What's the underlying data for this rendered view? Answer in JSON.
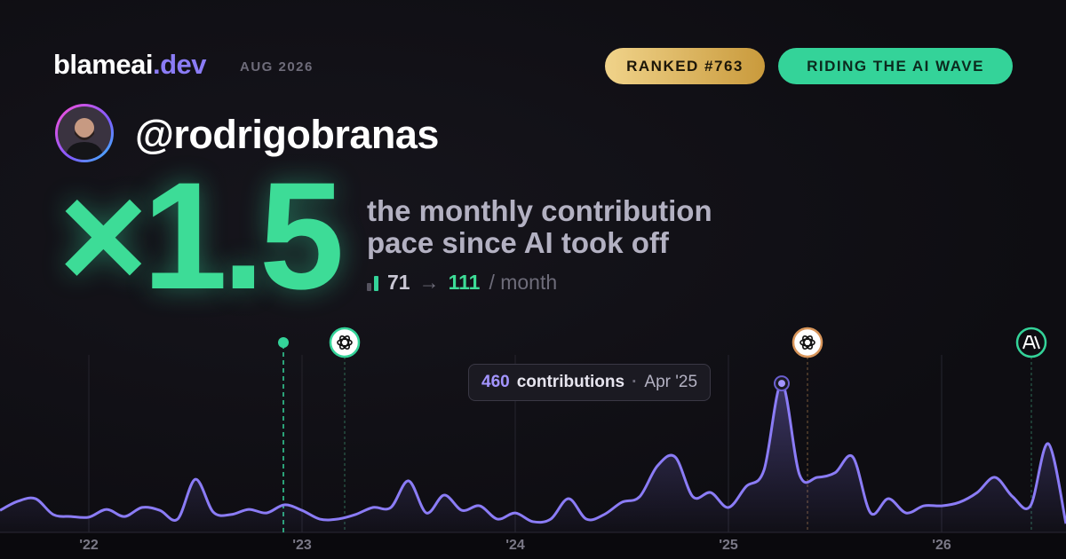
{
  "header": {
    "brand": "blameai",
    "brand_suffix": ".dev",
    "date": "AUG 2026",
    "badges": [
      "RANKED #763",
      "RIDING THE AI WAVE"
    ]
  },
  "profile": {
    "username": "@rodrigobranas"
  },
  "stat": {
    "multiplier": "×1.5",
    "description": [
      "the monthly contribution",
      "pace since AI took off"
    ],
    "before": 71,
    "arrow": "→",
    "after": 111,
    "unit": "/ month"
  },
  "tooltip": {
    "label": "contributions",
    "period": "Apr '25"
  },
  "chart_data": {
    "type": "line",
    "categories": [
      null,
      null,
      null,
      null,
      null,
      "'22",
      null,
      null,
      null,
      null,
      null,
      null,
      null,
      null,
      null,
      null,
      null,
      "'23",
      null,
      null,
      null,
      null,
      null,
      null,
      null,
      null,
      null,
      null,
      null,
      "'24",
      null,
      null,
      null,
      null,
      null,
      null,
      null,
      null,
      null,
      null,
      null,
      "'25",
      null,
      null,
      null,
      null,
      null,
      null,
      null,
      null,
      null,
      null,
      null,
      "'26",
      null,
      null,
      null,
      null,
      null,
      null,
      null
    ],
    "values": [
      68,
      96,
      104,
      55,
      49,
      47,
      71,
      49,
      77,
      68,
      41,
      164,
      63,
      55,
      71,
      60,
      85,
      68,
      41,
      41,
      55,
      77,
      77,
      159,
      60,
      115,
      68,
      82,
      41,
      60,
      33,
      41,
      104,
      41,
      55,
      93,
      110,
      205,
      233,
      110,
      123,
      77,
      142,
      192,
      460,
      178,
      170,
      184,
      233,
      60,
      104,
      60,
      82,
      82,
      93,
      123,
      170,
      110,
      82,
      274,
      27
    ],
    "color": "#8b7cf6",
    "ylim": [
      0,
      500
    ],
    "grid": true
  }
}
